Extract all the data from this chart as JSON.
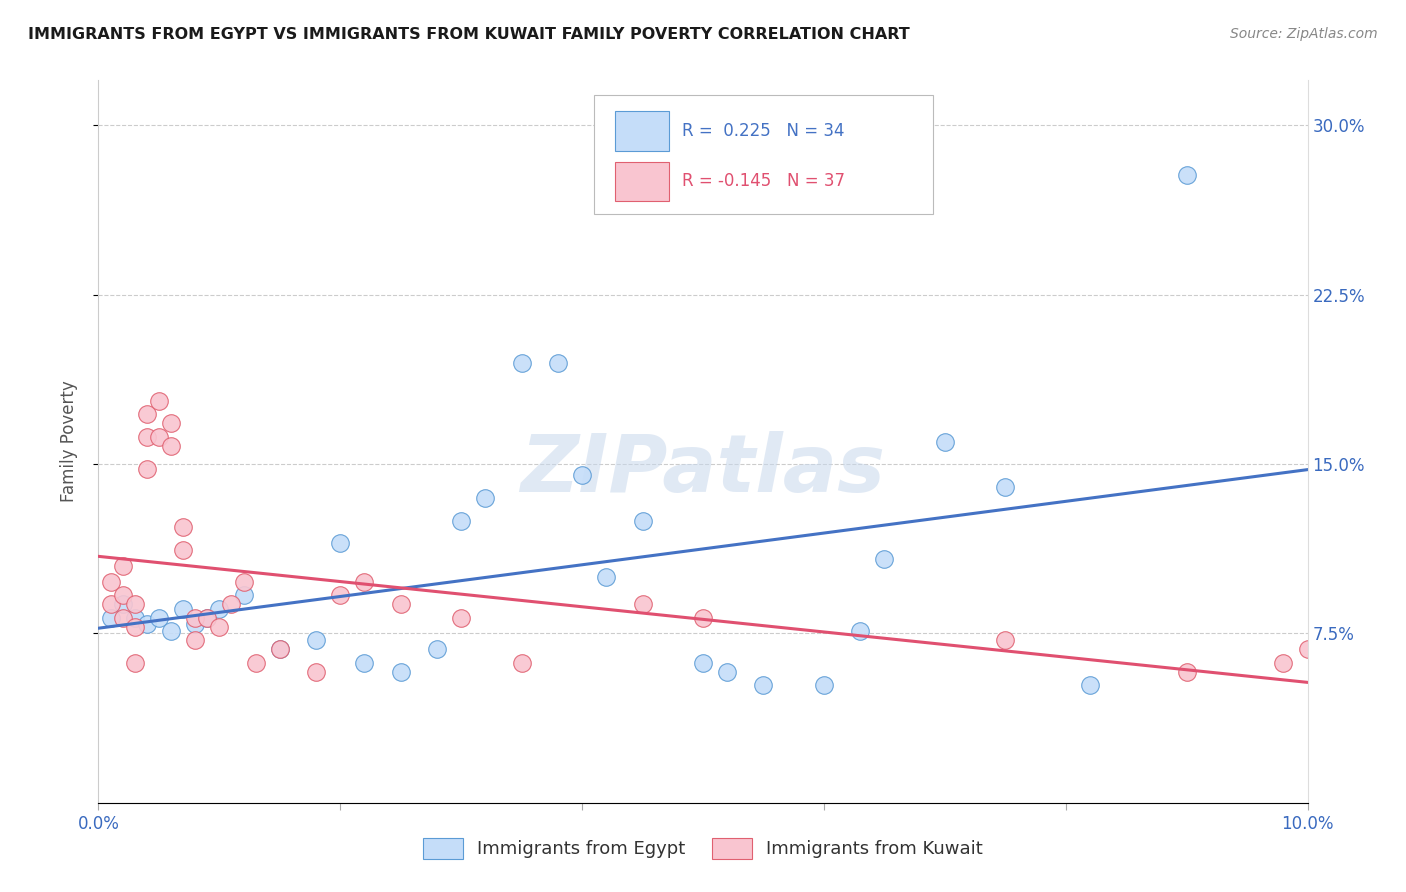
{
  "title": "IMMIGRANTS FROM EGYPT VS IMMIGRANTS FROM KUWAIT FAMILY POVERTY CORRELATION CHART",
  "source": "Source: ZipAtlas.com",
  "ylabel": "Family Poverty",
  "xlim": [
    0.0,
    0.1
  ],
  "ylim": [
    0.0,
    0.32
  ],
  "yticks": [
    0.075,
    0.15,
    0.225,
    0.3
  ],
  "ytick_labels": [
    "7.5%",
    "15.0%",
    "22.5%",
    "30.0%"
  ],
  "xticks": [
    0.0,
    0.02,
    0.04,
    0.06,
    0.08,
    0.1
  ],
  "xtick_labels": [
    "0.0%",
    "",
    "",
    "",
    "",
    "10.0%"
  ],
  "egypt_color": "#c5ddf9",
  "kuwait_color": "#f9c5d0",
  "egypt_edge_color": "#5b9bd5",
  "kuwait_edge_color": "#e06070",
  "egypt_line_color": "#4472c4",
  "kuwait_line_color": "#e05070",
  "egypt_R": 0.225,
  "egypt_N": 34,
  "kuwait_R": -0.145,
  "kuwait_N": 37,
  "watermark": "ZIPatlas",
  "egypt_x": [
    0.001,
    0.002,
    0.003,
    0.004,
    0.005,
    0.006,
    0.007,
    0.008,
    0.009,
    0.01,
    0.012,
    0.015,
    0.018,
    0.02,
    0.022,
    0.025,
    0.028,
    0.03,
    0.032,
    0.035,
    0.038,
    0.04,
    0.042,
    0.045,
    0.05,
    0.052,
    0.055,
    0.06,
    0.063,
    0.065,
    0.07,
    0.075,
    0.082,
    0.09
  ],
  "egypt_y": [
    0.082,
    0.088,
    0.082,
    0.079,
    0.082,
    0.076,
    0.086,
    0.079,
    0.082,
    0.086,
    0.092,
    0.068,
    0.072,
    0.115,
    0.062,
    0.058,
    0.068,
    0.125,
    0.135,
    0.195,
    0.195,
    0.145,
    0.1,
    0.125,
    0.062,
    0.058,
    0.052,
    0.052,
    0.076,
    0.108,
    0.16,
    0.14,
    0.052,
    0.278
  ],
  "kuwait_x": [
    0.001,
    0.001,
    0.002,
    0.002,
    0.002,
    0.003,
    0.003,
    0.003,
    0.004,
    0.004,
    0.004,
    0.005,
    0.005,
    0.006,
    0.006,
    0.007,
    0.007,
    0.008,
    0.008,
    0.009,
    0.01,
    0.011,
    0.012,
    0.013,
    0.015,
    0.018,
    0.02,
    0.022,
    0.025,
    0.03,
    0.035,
    0.045,
    0.05,
    0.075,
    0.09,
    0.098,
    0.1
  ],
  "kuwait_y": [
    0.098,
    0.088,
    0.105,
    0.092,
    0.082,
    0.088,
    0.078,
    0.062,
    0.172,
    0.162,
    0.148,
    0.178,
    0.162,
    0.168,
    0.158,
    0.122,
    0.112,
    0.082,
    0.072,
    0.082,
    0.078,
    0.088,
    0.098,
    0.062,
    0.068,
    0.058,
    0.092,
    0.098,
    0.088,
    0.082,
    0.062,
    0.088,
    0.082,
    0.072,
    0.058,
    0.062,
    0.068
  ]
}
